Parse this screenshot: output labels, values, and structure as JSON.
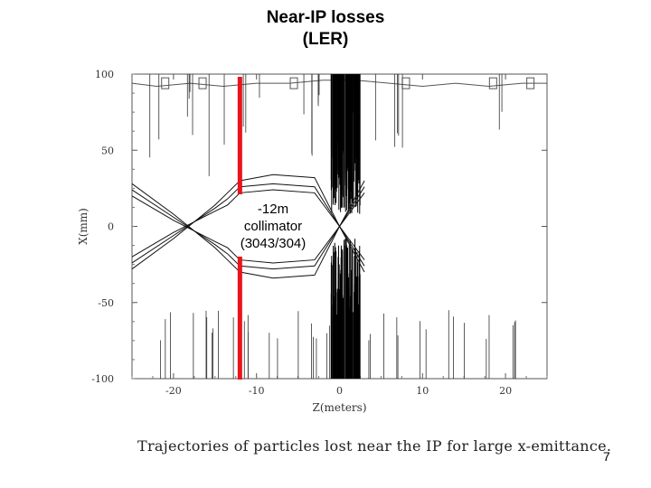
{
  "slide": {
    "title_line1": "Near-IP losses",
    "title_line2": "(LER)",
    "caption": "Trajectories of particles lost near the IP for large x-emittance.",
    "page_number": "7"
  },
  "annotation": {
    "line1": "-12m",
    "line2": "collimator",
    "line3": "(3043/304)",
    "z": -12,
    "color": "#e8141b"
  },
  "chart_data": {
    "type": "line",
    "xlabel": "Z(meters)",
    "ylabel": "X(mm)",
    "xlim": [
      -25,
      25
    ],
    "ylim": [
      -100,
      100
    ],
    "xticks": [
      -20,
      -10,
      0,
      10,
      20
    ],
    "yticks": [
      -100,
      -50,
      0,
      50,
      100
    ],
    "grid": false,
    "legend": "none",
    "series": [
      {
        "x": [
          -25,
          -20,
          -15,
          -13.5,
          -12,
          -8,
          -3,
          0,
          3
        ],
        "y": [
          28,
          8,
          -14,
          -22,
          -30,
          -34,
          -32,
          0,
          30
        ]
      },
      {
        "x": [
          -25,
          -20,
          -15,
          -13.5,
          -12,
          -8,
          -3,
          0,
          3
        ],
        "y": [
          -28,
          -8,
          14,
          22,
          30,
          34,
          32,
          0,
          -30
        ]
      },
      {
        "x": [
          -25,
          -20,
          -15,
          -13.5,
          -12,
          -8,
          -3,
          0,
          3
        ],
        "y": [
          24,
          6,
          -12,
          -18,
          -26,
          -28,
          -26,
          0,
          26
        ]
      },
      {
        "x": [
          -25,
          -20,
          -15,
          -13.5,
          -12,
          -8,
          -3,
          0,
          3
        ],
        "y": [
          -24,
          -6,
          12,
          18,
          26,
          28,
          26,
          0,
          -26
        ]
      },
      {
        "x": [
          -25,
          -20,
          -15,
          -13.5,
          -12,
          -8,
          -3,
          0,
          3
        ],
        "y": [
          20,
          4,
          -10,
          -14,
          -22,
          -24,
          -22,
          0,
          22
        ]
      },
      {
        "x": [
          -25,
          -20,
          -15,
          -13.5,
          -12,
          -8,
          -3,
          0,
          3
        ],
        "y": [
          -20,
          -4,
          10,
          14,
          22,
          24,
          22,
          0,
          -22
        ]
      }
    ],
    "aperture_top": [
      {
        "z": -25,
        "x": 94
      },
      {
        "z": -22,
        "x": 92
      },
      {
        "z": -18,
        "x": 94
      },
      {
        "z": -14,
        "x": 92
      },
      {
        "z": -10,
        "x": 94
      },
      {
        "z": -6,
        "x": 94
      },
      {
        "z": -2,
        "x": 96
      },
      {
        "z": 2,
        "x": 96
      },
      {
        "z": 6,
        "x": 94
      },
      {
        "z": 10,
        "x": 92
      },
      {
        "z": 14,
        "x": 94
      },
      {
        "z": 18,
        "x": 92
      },
      {
        "z": 22,
        "x": 94
      },
      {
        "z": 25,
        "x": 94
      }
    ],
    "aperture_bottom": [
      {
        "z": -25,
        "x": -100
      },
      {
        "z": 25,
        "x": -100
      }
    ]
  }
}
